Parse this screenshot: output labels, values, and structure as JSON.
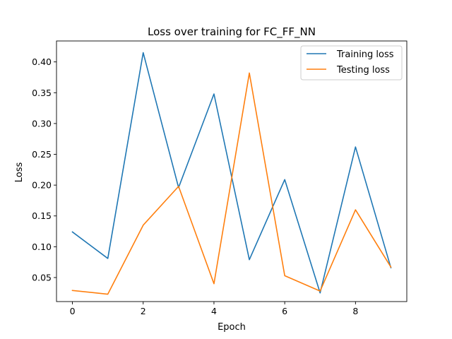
{
  "chart_data": {
    "type": "line",
    "title": "Loss over training for FC_FF_NN",
    "xlabel": "Epoch",
    "ylabel": "Loss",
    "x": [
      0,
      1,
      2,
      3,
      4,
      5,
      6,
      7,
      8,
      9
    ],
    "xlim": [
      -0.45,
      9.45
    ],
    "ylim": [
      0.011,
      0.434
    ],
    "xticks": [
      0,
      2,
      4,
      6,
      8
    ],
    "yticks": [
      0.05,
      0.1,
      0.15,
      0.2,
      0.25,
      0.3,
      0.35,
      0.4
    ],
    "ytick_labels": [
      "0.05",
      "0.10",
      "0.15",
      "0.20",
      "0.25",
      "0.30",
      "0.35",
      "0.40"
    ],
    "grid": false,
    "legend_position": "top-right",
    "series": [
      {
        "name": "Training loss",
        "color": "#1f77b4",
        "values": [
          0.124,
          0.081,
          0.415,
          0.196,
          0.348,
          0.079,
          0.209,
          0.025,
          0.262,
          0.066
        ]
      },
      {
        "name": "Testing loss",
        "color": "#ff7f0e",
        "values": [
          0.029,
          0.023,
          0.135,
          0.198,
          0.04,
          0.382,
          0.053,
          0.028,
          0.16,
          0.067
        ]
      }
    ]
  }
}
